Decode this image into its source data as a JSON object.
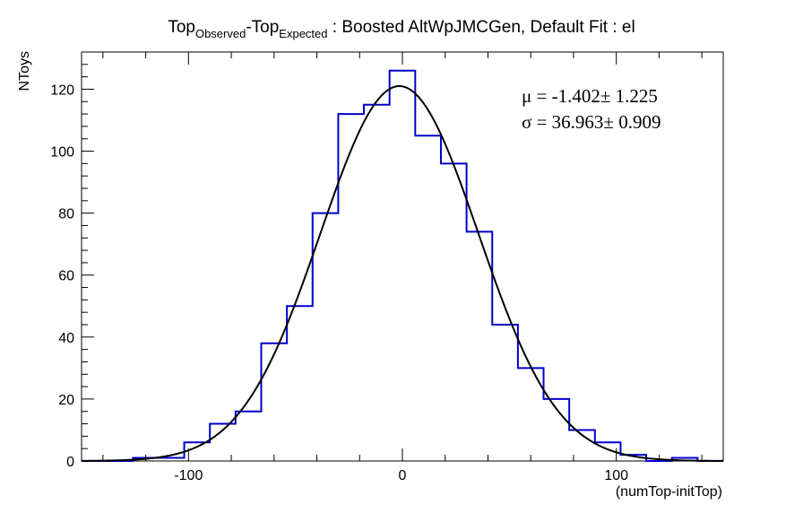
{
  "chart_data": {
    "type": "histogram",
    "title_parts": {
      "base1": "Top",
      "sub1": "Observed",
      "base2": "-Top",
      "sub2": "Expected",
      "rest": " : Boosted AltWpJMCGen, Default Fit : el"
    },
    "xlabel": "(numTop-initTop)",
    "ylabel": "NToys",
    "xlim": [
      -150,
      150
    ],
    "ylim": [
      0,
      132
    ],
    "x_ticks": [
      -100,
      0,
      100
    ],
    "y_ticks": [
      0,
      20,
      40,
      60,
      80,
      100,
      120
    ],
    "bin_edges": [
      -150,
      -138,
      -126,
      -114,
      -102,
      -90,
      -78,
      -66,
      -54,
      -42,
      -30,
      -18,
      -6,
      6,
      18,
      30,
      42,
      54,
      66,
      78,
      90,
      102,
      114,
      126,
      138,
      150
    ],
    "counts": [
      0,
      0,
      1,
      1,
      6,
      12,
      16,
      38,
      50,
      80,
      112,
      115,
      126,
      105,
      96,
      74,
      44,
      30,
      20,
      10,
      6,
      2,
      0,
      1,
      0
    ],
    "fit": {
      "function": "gaussian",
      "mean": -1.402,
      "sigma": 36.963,
      "amplitude": 121,
      "line1_symbol": "μ",
      "line1_value": " = -1.402± 1.225",
      "line2_symbol": "σ",
      "line2_value": " = 36.963± 0.909"
    },
    "colors": {
      "histogram": "#0000cc",
      "fit": "#000000",
      "frame": "#000000"
    },
    "grid": false,
    "legend": "none"
  }
}
